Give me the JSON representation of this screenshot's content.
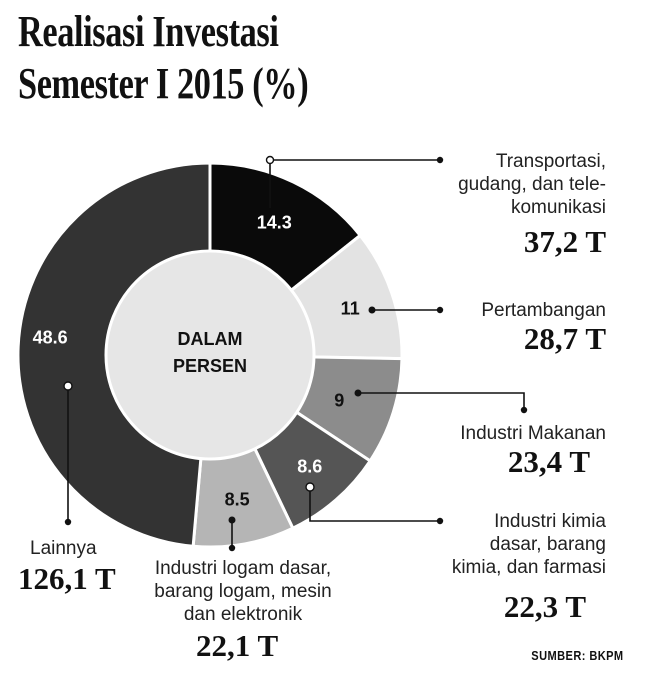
{
  "title": "Realisasi Investasi Semester I  2015 (%)",
  "center_label": "DALAM PERSEN",
  "source": "SUMBER: BKPM",
  "colors": {
    "black": "#0a0a0a",
    "light_gray": "#e3e3e3",
    "mid_gray": "#8c8c8c",
    "dark_gray": "#555555",
    "silver": "#b5b5b5",
    "charcoal": "#333333",
    "center": "#e6e6e6"
  },
  "chart_data": {
    "type": "pie",
    "title": "Realisasi Investasi Semester I  2015 (%)",
    "center_label": "DALAM PERSEN",
    "slices": [
      {
        "label": "Transportasi, gudang, dan tele-komunikasi",
        "percent": 14.3,
        "value_label": "14.3",
        "amount": "37,2 T",
        "color": "#0a0a0a"
      },
      {
        "label": "Pertambangan",
        "percent": 11,
        "value_label": "11",
        "amount": "28,7 T",
        "color": "#e3e3e3"
      },
      {
        "label": "Industri Makanan",
        "percent": 9,
        "value_label": "9",
        "amount": "23,4 T",
        "color": "#8c8c8c"
      },
      {
        "label": "Industri kimia dasar, barang kimia, dan farmasi",
        "percent": 8.6,
        "value_label": "8.6",
        "amount": "22,3 T",
        "color": "#555555"
      },
      {
        "label": "Industri logam dasar, barang logam, mesin dan elektronik",
        "percent": 8.5,
        "value_label": "8.5",
        "amount": "22,1 T",
        "color": "#b5b5b5"
      },
      {
        "label": "Lainnya",
        "percent": 48.6,
        "value_label": "48.6",
        "amount": "126,1 T",
        "color": "#333333"
      }
    ]
  },
  "labels": {
    "transportasi": "Transportasi,\ngudang, dan tele-\nkomunikasi",
    "pertambangan": "Pertambangan",
    "makanan": "Industri Makanan",
    "kimia": "Industri kimia\ndasar, barang\nkimia, dan farmasi",
    "logam": "Industri logam dasar,\nbarang logam, mesin\ndan elektronik",
    "lainnya": "Lainnya"
  }
}
